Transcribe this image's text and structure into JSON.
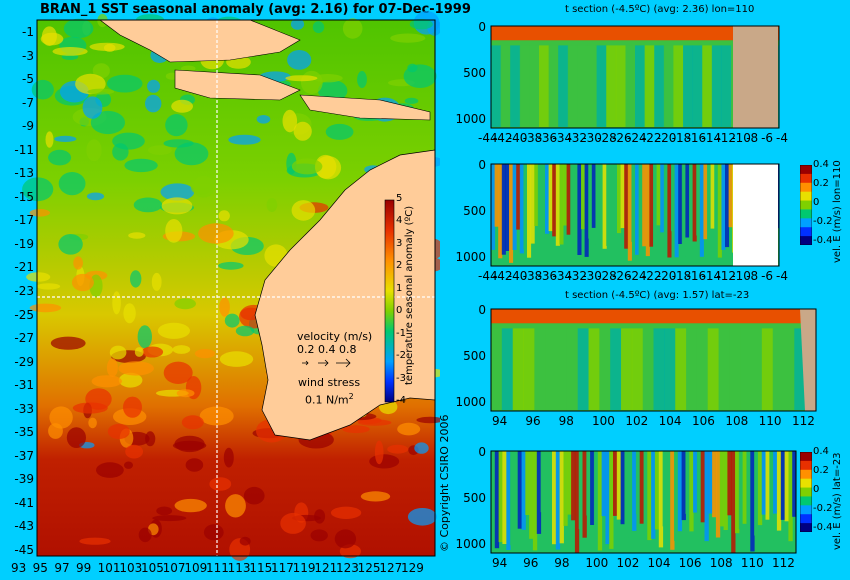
{
  "colors": {
    "background": "#00cfff",
    "land": "#ffcc99",
    "section_land": "#c9a888",
    "scale": [
      "#000080",
      "#0030ff",
      "#00a0ff",
      "#00c870",
      "#7fd000",
      "#e8e000",
      "#ff9000",
      "#e83000",
      "#9a0000"
    ]
  },
  "map": {
    "title": "BRAN_1 SST seasonal anomaly (avg: 2.16) for 07-Dec-1999",
    "y_ticks": [
      "-1",
      "-3",
      "-5",
      "-7",
      "-9",
      "-11",
      "-13",
      "-15",
      "-17",
      "-19",
      "-21",
      "-23",
      "-25",
      "-27",
      "-29",
      "-31",
      "-33",
      "-35",
      "-37",
      "-39",
      "-41",
      "-43",
      "-45"
    ],
    "x_ticks": [
      "93",
      "95",
      "97",
      "99",
      "101",
      "103",
      "105",
      "107",
      "109",
      "111",
      "113",
      "115",
      "117",
      "119",
      "121",
      "123",
      "125",
      "127",
      "129"
    ],
    "colorbar_ticks": [
      "5",
      "4",
      "3",
      "2",
      "1",
      "0",
      "-1",
      "-2",
      "-3",
      "-4"
    ],
    "colorbar_label": "temperature seasonal anomaly (ºC)",
    "velocity_label": "velocity (m/s)",
    "velocity_scale": "0.2 0.4 0.8",
    "wind_label": "wind stress",
    "wind_scale": "0.1 N/m",
    "wind_scale_sup": "2",
    "copyright": "© Copyright CSIRO 2006"
  },
  "panels": [
    {
      "id": "p1",
      "title": "t section (-4.5ºC) (avg: 2.36) lon=110",
      "y_ticks": [
        "0",
        "500",
        "1000"
      ],
      "x_ticks": [
        "-44",
        "-42",
        "-40",
        "-38",
        "-36",
        "-34",
        "-32",
        "-30",
        "-28",
        "-26",
        "-24",
        "-22",
        "-20",
        "-18",
        "-16",
        "-14",
        "-12",
        "-10",
        "-8",
        "-6",
        "-4"
      ]
    },
    {
      "id": "p2",
      "title": "",
      "y_ticks": [
        "0",
        "500",
        "1000"
      ],
      "x_ticks": [
        "-44",
        "-42",
        "-40",
        "-38",
        "-36",
        "-34",
        "-32",
        "-30",
        "-28",
        "-26",
        "-24",
        "-22",
        "-20",
        "-18",
        "-16",
        "-14",
        "-12",
        "-10",
        "-8",
        "-6",
        "-4"
      ],
      "colorbar_ticks": [
        "0.4",
        "0.2",
        "0",
        "-0.2",
        "-0.4"
      ],
      "colorbar_label": "vel. E (m/s) lon=110"
    },
    {
      "id": "p3",
      "title": "t section (-4.5ºC) (avg: 1.57) lat=-23",
      "y_ticks": [
        "0",
        "500",
        "1000"
      ],
      "x_ticks": [
        "94",
        "96",
        "98",
        "100",
        "102",
        "104",
        "106",
        "108",
        "110",
        "112"
      ]
    },
    {
      "id": "p4",
      "title": "",
      "y_ticks": [
        "0",
        "500",
        "1000"
      ],
      "x_ticks": [
        "94",
        "96",
        "98",
        "100",
        "102",
        "104",
        "106",
        "108",
        "110",
        "112"
      ],
      "colorbar_ticks": [
        "0.4",
        "0.2",
        "0",
        "-0.2",
        "-0.4"
      ],
      "colorbar_label": "vel. E (m/s) lat=-23"
    }
  ],
  "chart_data": [
    {
      "type": "heatmap",
      "title": "BRAN_1 SST seasonal anomaly (avg: 2.16) for 07-Dec-1999",
      "xlabel": "",
      "ylabel": "",
      "xlim": [
        93,
        130
      ],
      "ylim": [
        -45,
        0
      ],
      "colorbar_range": [
        -4,
        5
      ],
      "colorbar_label": "temperature seasonal anomaly (ºC)",
      "crosshair": {
        "lon": 110,
        "lat": -23
      }
    },
    {
      "type": "heatmap",
      "title": "t section (-4.5ºC) (avg: 2.36) lon=110",
      "xlim": [
        -45,
        -3
      ],
      "ylim": [
        1050,
        0
      ]
    },
    {
      "type": "heatmap",
      "title": "",
      "xlim": [
        -45,
        -3
      ],
      "ylim": [
        1050,
        0
      ],
      "colorbar_range": [
        -0.5,
        0.5
      ],
      "colorbar_label": "vel. E (m/s) lon=110"
    },
    {
      "type": "heatmap",
      "title": "t section (-4.5ºC) (avg: 1.57) lat=-23",
      "xlim": [
        93,
        114
      ],
      "ylim": [
        1050,
        0
      ]
    },
    {
      "type": "heatmap",
      "title": "",
      "xlim": [
        93,
        114
      ],
      "ylim": [
        1050,
        0
      ],
      "colorbar_range": [
        -0.5,
        0.5
      ],
      "colorbar_label": "vel. E (m/s) lat=-23"
    }
  ]
}
